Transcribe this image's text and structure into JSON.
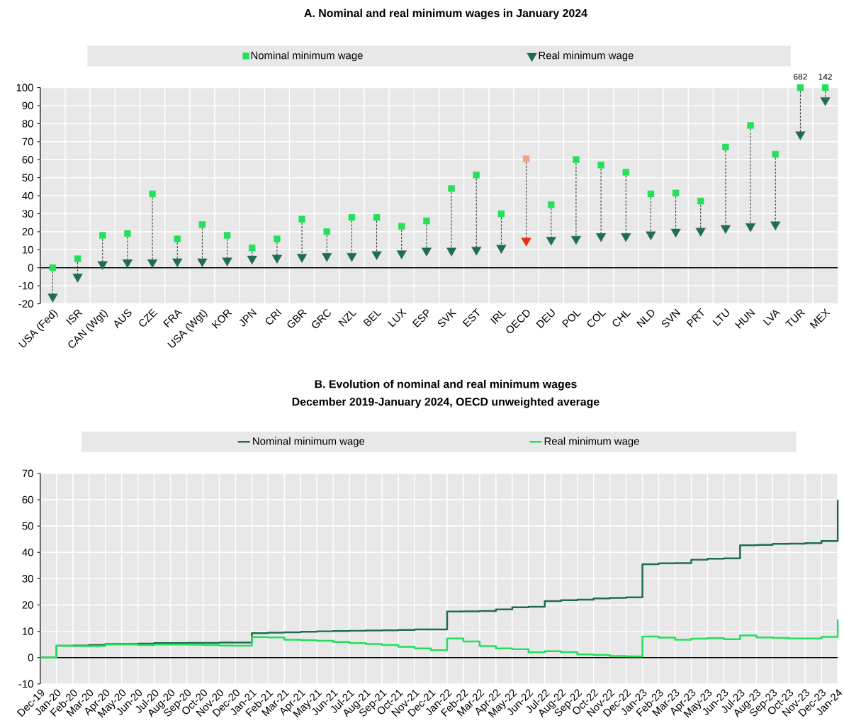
{
  "chart_data": [
    {
      "type": "scatter",
      "title": "A. Nominal and real minimum wages in January 2024",
      "categories": [
        "USA (Fed)",
        "ISR",
        "CAN (Wgt)",
        "AUS",
        "CZE",
        "FRA",
        "USA (Wgt)",
        "KOR",
        "JPN",
        "CRI",
        "GBR",
        "GRC",
        "NZL",
        "BEL",
        "LUX",
        "ESP",
        "SVK",
        "EST",
        "IRL",
        "OECD",
        "DEU",
        "POL",
        "COL",
        "CHL",
        "NLD",
        "SVN",
        "PRT",
        "LTU",
        "HUN",
        "LVA",
        "TUR",
        "MEX"
      ],
      "series": [
        {
          "name": "Nominal minimum wage",
          "marker": "square",
          "colors": [
            "#22e05a",
            "#22e05a",
            "#22e05a",
            "#22e05a",
            "#22e05a",
            "#22e05a",
            "#22e05a",
            "#22e05a",
            "#22e05a",
            "#22e05a",
            "#22e05a",
            "#22e05a",
            "#22e05a",
            "#22e05a",
            "#22e05a",
            "#22e05a",
            "#22e05a",
            "#22e05a",
            "#22e05a",
            "#f4a08a",
            "#22e05a",
            "#22e05a",
            "#22e05a",
            "#22e05a",
            "#22e05a",
            "#22e05a",
            "#22e05a",
            "#22e05a",
            "#22e05a",
            "#22e05a",
            "#22e05a",
            "#22e05a"
          ],
          "values": [
            0,
            5,
            18,
            19,
            41,
            16,
            24,
            18,
            11,
            16,
            27,
            20,
            28,
            28,
            23,
            26,
            44,
            51.5,
            30,
            60.5,
            35,
            60,
            57,
            53,
            41,
            41.5,
            37,
            67,
            79,
            63,
            100,
            100
          ]
        },
        {
          "name": "Real minimum wage",
          "marker": "triangle",
          "colors": [
            "#1f6b55",
            "#1f6b55",
            "#1f6b55",
            "#1f6b55",
            "#1f6b55",
            "#1f6b55",
            "#1f6b55",
            "#1f6b55",
            "#1f6b55",
            "#1f6b55",
            "#1f6b55",
            "#1f6b55",
            "#1f6b55",
            "#1f6b55",
            "#1f6b55",
            "#1f6b55",
            "#1f6b55",
            "#1f6b55",
            "#1f6b55",
            "#e83010",
            "#1f6b55",
            "#1f6b55",
            "#1f6b55",
            "#1f6b55",
            "#1f6b55",
            "#1f6b55",
            "#1f6b55",
            "#1f6b55",
            "#1f6b55",
            "#1f6b55",
            "#1f6b55",
            "#1f6b55"
          ],
          "values": [
            -16,
            -5,
            2,
            3,
            3,
            3.5,
            3.5,
            4,
            5,
            5.5,
            6,
            6.5,
            6.5,
            7.5,
            8,
            9.5,
            9.5,
            10,
            11,
            15,
            15.5,
            16,
            17.5,
            17.5,
            18.5,
            20,
            20.5,
            22,
            23,
            24,
            74,
            93
          ]
        }
      ],
      "annotations": [
        {
          "text": "682",
          "x": "TUR",
          "y": 100
        },
        {
          "text": "142",
          "x": "MEX",
          "y": 100
        }
      ],
      "ylim": [
        -20,
        100
      ],
      "yticks": [
        -20,
        -10,
        0,
        10,
        20,
        30,
        40,
        50,
        60,
        70,
        80,
        90,
        100
      ],
      "grid": true,
      "legend": "top"
    },
    {
      "type": "step",
      "title": "B. Evolution of nominal and real minimum wages",
      "subtitle": "December 2019-January 2024, OECD unweighted average",
      "categories": [
        "Dec-19",
        "Jan-20",
        "Feb-20",
        "Mar-20",
        "Apr-20",
        "May-20",
        "Jun-20",
        "Jul-20",
        "Aug-20",
        "Sep-20",
        "Oct-20",
        "Nov-20",
        "Dec-20",
        "Jan-21",
        "Feb-21",
        "Mar-21",
        "Apr-21",
        "May-21",
        "Jun-21",
        "Jul-21",
        "Aug-21",
        "Sep-21",
        "Oct-21",
        "Nov-21",
        "Dec-21",
        "Jan-22",
        "Feb-22",
        "Mar-22",
        "Apr-22",
        "May-22",
        "Jun-22",
        "Jul-22",
        "Aug-22",
        "Sep-22",
        "Oct-22",
        "Nov-22",
        "Dec-22",
        "Jan-23",
        "Feb-23",
        "Mar-23",
        "Apr-23",
        "May-23",
        "Jun-23",
        "Jul-23",
        "Aug-23",
        "Sep-23",
        "Oct-23",
        "Nov-23",
        "Dec-23",
        "Jan-24"
      ],
      "series": [
        {
          "name": "Nominal minimum wage",
          "color": "#1f6b55",
          "values": [
            0,
            4.5,
            4.6,
            4.8,
            5.2,
            5.2,
            5.3,
            5.5,
            5.5,
            5.6,
            5.6,
            5.7,
            5.7,
            9.3,
            9.5,
            9.6,
            9.8,
            10,
            10.1,
            10.2,
            10.3,
            10.4,
            10.5,
            10.7,
            10.7,
            17.5,
            17.6,
            17.7,
            18.3,
            19.1,
            19.3,
            21.5,
            21.8,
            22,
            22.5,
            22.7,
            22.9,
            35.5,
            35.8,
            35.9,
            37.2,
            37.6,
            37.7,
            42.7,
            42.8,
            43.2,
            43.3,
            43.5,
            44.3,
            60
          ]
        },
        {
          "name": "Real minimum wage",
          "color": "#22e05a",
          "values": [
            0,
            4.5,
            4.4,
            4.4,
            5,
            5,
            4.8,
            5,
            5,
            4.9,
            4.8,
            4.6,
            4.5,
            7.8,
            7.7,
            6.8,
            6.6,
            6.4,
            5.9,
            5.5,
            5.2,
            4.8,
            4.1,
            3.5,
            2.8,
            7.3,
            6.1,
            4.4,
            3.5,
            3.2,
            2,
            2.4,
            2.1,
            1.2,
            1,
            0.6,
            0.5,
            8,
            7.6,
            6.8,
            7.2,
            7.4,
            7,
            8.4,
            7.7,
            7.5,
            7.3,
            7.3,
            7.9,
            14.5
          ]
        }
      ],
      "ylim": [
        -10,
        70
      ],
      "yticks": [
        -10,
        0,
        10,
        20,
        30,
        40,
        50,
        60,
        70
      ],
      "grid": true,
      "legend": "top"
    }
  ]
}
